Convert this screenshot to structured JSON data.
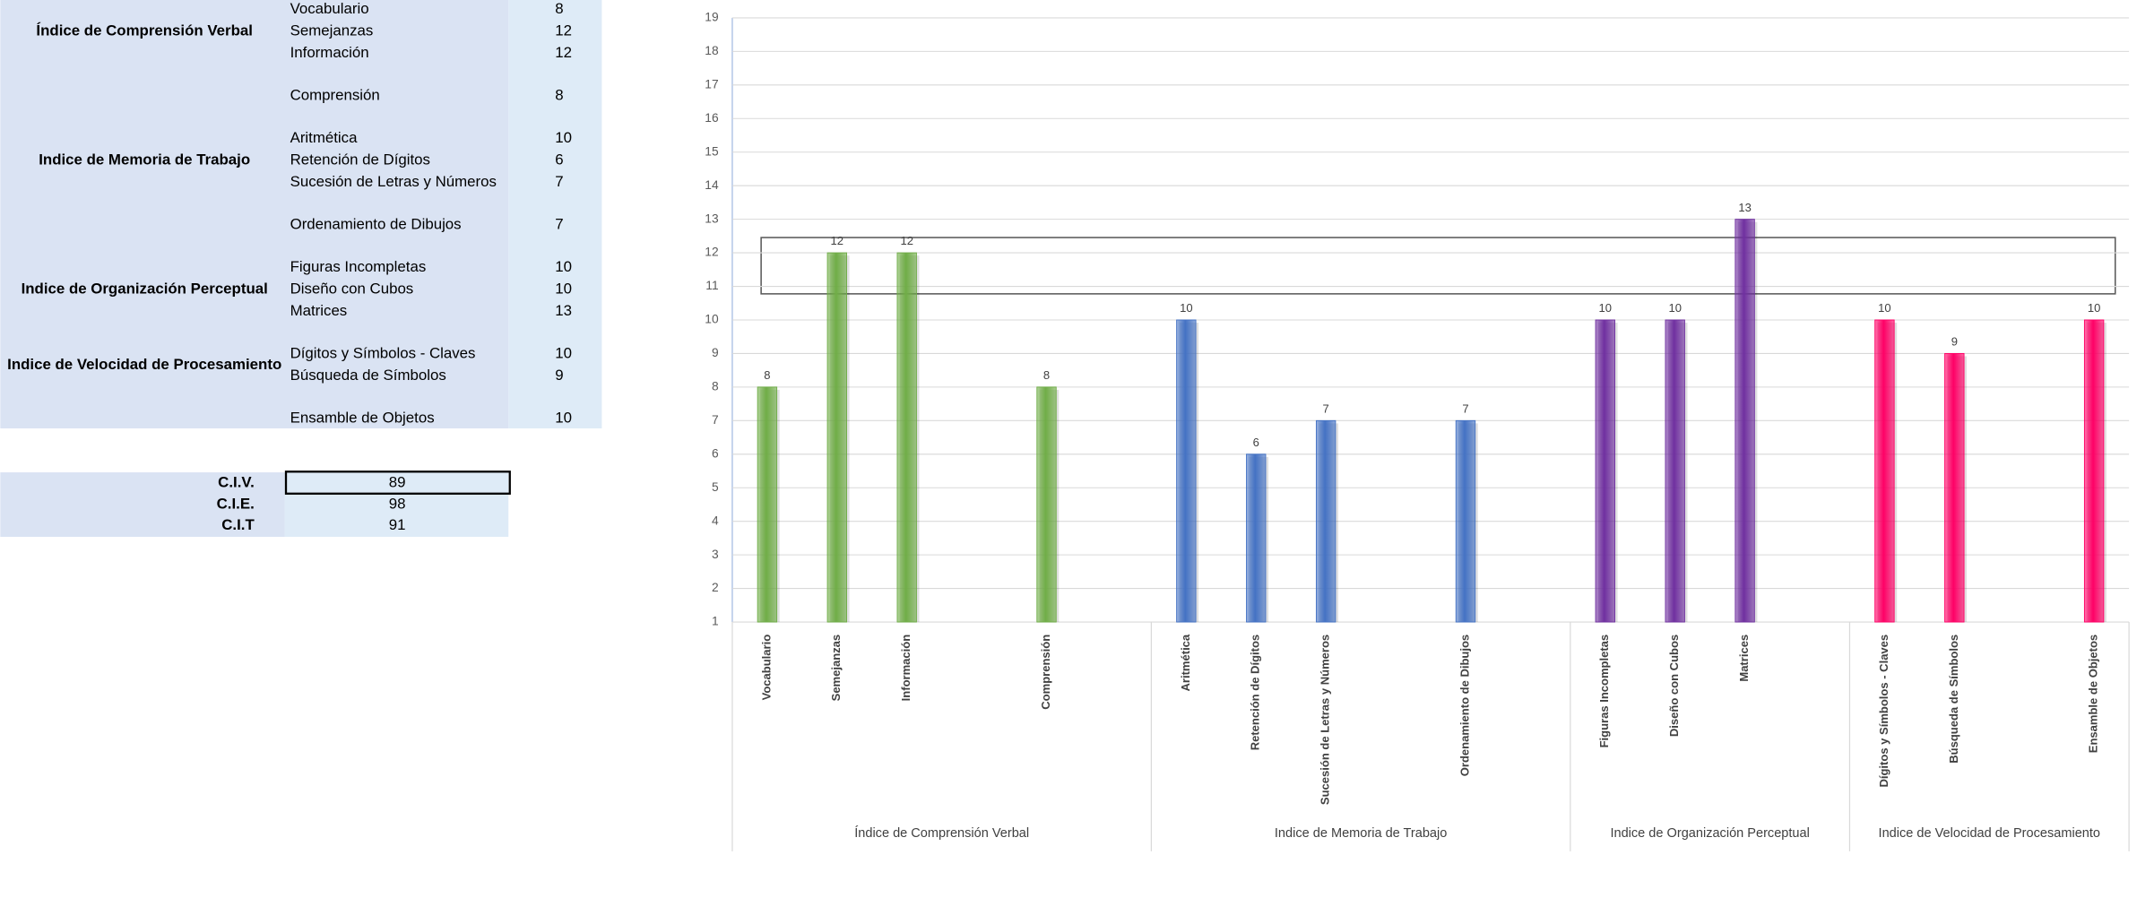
{
  "table": {
    "index_labels": [
      "Índice de Comprensión Verbal",
      "Indice de Memoria de Trabajo",
      "Indice de Organización Perceptual",
      "Indice de Velocidad de Procesamiento"
    ],
    "subtests": [
      {
        "name": "Vocabulario",
        "score": 8
      },
      {
        "name": "Semejanzas",
        "score": 12
      },
      {
        "name": "Información",
        "score": 12
      },
      {
        "name": "Comprensión",
        "score": 8
      },
      {
        "name": "Aritmética",
        "score": 10
      },
      {
        "name": "Retención de Dígitos",
        "score": 6
      },
      {
        "name": "Sucesión de Letras y Números",
        "score": 7
      },
      {
        "name": "Ordenamiento de Dibujos",
        "score": 7
      },
      {
        "name": "Figuras Incompletas",
        "score": 10
      },
      {
        "name": "Diseño con Cubos",
        "score": 10
      },
      {
        "name": "Matrices",
        "score": 13
      },
      {
        "name": "Dígitos y Símbolos - Claves",
        "score": 10
      },
      {
        "name": "Búsqueda de Símbolos",
        "score": 9
      },
      {
        "name": "Ensamble de Objetos",
        "score": 10
      }
    ],
    "summary": [
      {
        "label": "C.I.V.",
        "value": 89
      },
      {
        "label": "C.I.E.",
        "value": 98
      },
      {
        "label": "C.I.T",
        "value": 91
      }
    ]
  },
  "chart_data": {
    "type": "bar",
    "categories": [
      "Vocabulario",
      "Semejanzas",
      "Información",
      null,
      "Comprensión",
      null,
      "Aritmética",
      "Retención de Dígitos",
      "Sucesión de Letras y Números",
      null,
      "Ordenamiento de Dibujos",
      null,
      "Figuras Incompletas",
      "Diseño con Cubos",
      "Matrices",
      null,
      "Dígitos y Símbolos - Claves",
      "Búsqueda de Símbolos",
      null,
      "Ensamble de Objetos"
    ],
    "series": [
      {
        "name": "Índice de Comprensión Verbal",
        "color": "#70ad47",
        "values": [
          8,
          12,
          12,
          null,
          8,
          null,
          null,
          null,
          null,
          null,
          null,
          null,
          null,
          null,
          null,
          null,
          null,
          null,
          null,
          null
        ]
      },
      {
        "name": "Indice de Memoria de Trabajo",
        "color": "#4472c4",
        "values": [
          null,
          null,
          null,
          null,
          null,
          null,
          10,
          6,
          7,
          null,
          7,
          null,
          null,
          null,
          null,
          null,
          null,
          null,
          null,
          null
        ]
      },
      {
        "name": "Indice de Organización  Perceptual",
        "color": "#7030a0",
        "values": [
          null,
          null,
          null,
          null,
          null,
          null,
          null,
          null,
          null,
          null,
          null,
          null,
          10,
          10,
          13,
          null,
          null,
          null,
          null,
          null
        ]
      },
      {
        "name": "Indice de Velocidad de Procesamiento",
        "color": "#ff0066",
        "values": [
          null,
          null,
          null,
          null,
          null,
          null,
          null,
          null,
          null,
          null,
          null,
          null,
          null,
          null,
          null,
          null,
          10,
          9,
          null,
          10
        ]
      }
    ],
    "ylim": [
      1,
      19
    ],
    "yticks": [
      1,
      2,
      3,
      4,
      5,
      6,
      7,
      8,
      9,
      10,
      11,
      12,
      13,
      14,
      15,
      16,
      17,
      18,
      19
    ],
    "grid": true
  }
}
